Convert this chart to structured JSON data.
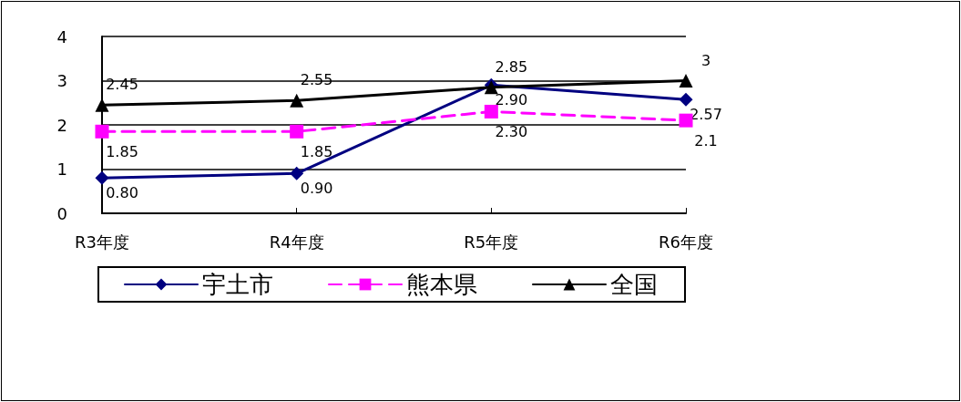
{
  "chart_data": {
    "type": "line",
    "categories": [
      "R3年度",
      "R4年度",
      "R5年度",
      "R6年度"
    ],
    "series": [
      {
        "name": "宇土市",
        "color": "#000080",
        "marker": "diamond",
        "line_style": "solid",
        "values": [
          0.8,
          0.9,
          2.9,
          2.57
        ],
        "value_labels": [
          "0.80",
          "0.90",
          "2.90",
          "2.57"
        ]
      },
      {
        "name": "熊本県",
        "color": "#ff00ff",
        "marker": "square",
        "line_style": "dashed",
        "values": [
          1.85,
          1.85,
          2.3,
          2.1
        ],
        "value_labels": [
          "1.85",
          "1.85",
          "2.30",
          "2.1"
        ]
      },
      {
        "name": "全国",
        "color": "#000000",
        "marker": "triangle",
        "line_style": "solid",
        "values": [
          2.45,
          2.55,
          2.85,
          3
        ],
        "value_labels": [
          "2.45",
          "2.55",
          "2.85",
          "3"
        ]
      }
    ],
    "ylim": [
      0,
      4
    ],
    "yticks": [
      0,
      1,
      2,
      3,
      4
    ],
    "grid": "y",
    "legend": "bottom"
  }
}
